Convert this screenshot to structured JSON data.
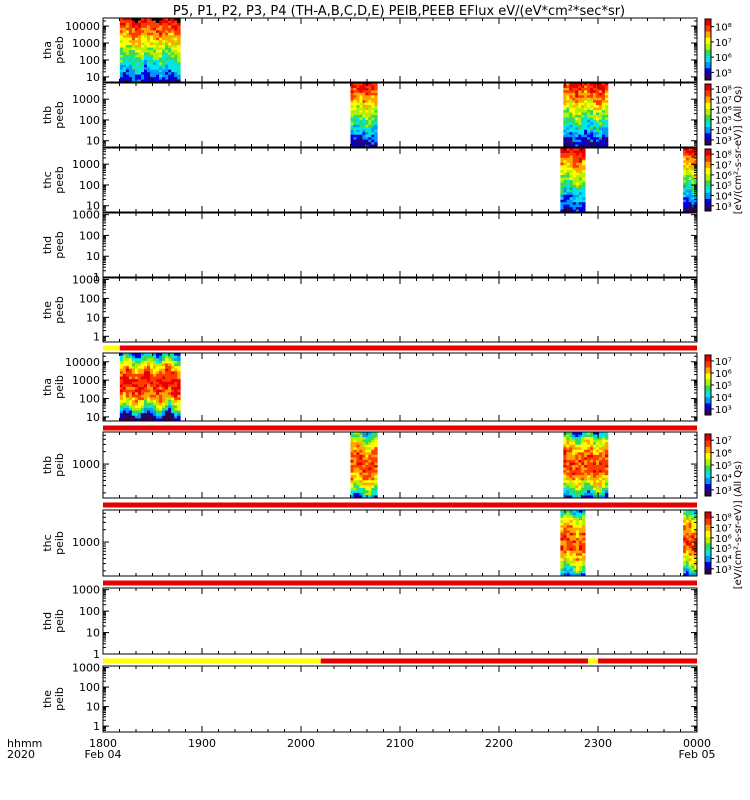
{
  "title": "P5, P1, P2, P3, P4 (TH-A,B,C,D,E) PEIB,PEEB EFlux eV/(eV*cm²*sec*sr)",
  "chart_data": {
    "type": "heatmap",
    "title": "P5, P1, P2, P3, P4 (TH-A,B,C,D,E) PEIB,PEEB EFlux eV/(eV*cm²*sec*sr)",
    "x_axis": {
      "ticks": [
        "1800",
        "1900",
        "2000",
        "2100",
        "2200",
        "2300",
        "0000"
      ],
      "tick_hours": [
        18,
        19,
        20,
        21,
        22,
        23,
        24
      ],
      "range_hours": [
        18,
        24
      ],
      "date_labels": {
        "start": "Feb 04",
        "end": "Feb 05"
      },
      "left_labels": [
        "hhmm",
        "2020"
      ]
    },
    "colorbar_labels": {
      "peeb": "[eV/(cm²-s-sr-eV)] (All Qs)",
      "peib": "[eV/(cm²-s-sr-eV)] (All Qs)"
    },
    "colormap": [
      "#30005a",
      "#0000e6",
      "#0096ff",
      "#00e6e6",
      "#32dc5a",
      "#b4f000",
      "#ffff00",
      "#ffa500",
      "#ff3c00",
      "#e60000"
    ],
    "flag_colors": {
      "red": "#e60000",
      "yellow": "#ffff00"
    },
    "panels": [
      {
        "probe": "tha",
        "instrument": "peeb",
        "ylabels": [
          "tha",
          "peeb"
        ],
        "yscale": "log",
        "ylim": [
          5,
          30000
        ],
        "yticks": [
          10,
          100,
          1000,
          10000
        ],
        "ytick_labels": [
          "10",
          "100",
          "1000",
          "10000"
        ],
        "data_intervals": [
          [
            18.17,
            18.78
          ]
        ],
        "flux_profile": "eeb_low",
        "colorbar": {
          "labels": [
            "10⁵",
            "10⁶",
            "10⁷",
            "10⁸"
          ]
        }
      },
      {
        "probe": "thb",
        "instrument": "peeb",
        "ylabels": [
          "thb",
          "peeb"
        ],
        "yscale": "log",
        "ylim": [
          5,
          6000
        ],
        "yticks": [
          10,
          100,
          1000
        ],
        "ytick_labels": [
          "10",
          "100",
          "1000"
        ],
        "data_intervals": [
          [
            20.5,
            20.77
          ],
          [
            22.65,
            23.1
          ]
        ],
        "flux_profile": "eeb_mid",
        "colorbar": {
          "labels": [
            "10³",
            "10⁴",
            "10⁵",
            "10⁶",
            "10⁷",
            "10⁸"
          ]
        }
      },
      {
        "probe": "thc",
        "instrument": "peeb",
        "ylabels": [
          "thc",
          "peeb"
        ],
        "yscale": "log",
        "ylim": [
          5,
          6000
        ],
        "yticks": [
          10,
          100,
          1000
        ],
        "ytick_labels": [
          "10",
          "100",
          "1000"
        ],
        "data_intervals": [
          [
            22.62,
            22.87
          ],
          [
            23.86,
            24.0
          ]
        ],
        "flux_profile": "eeb_mid",
        "colorbar": {
          "labels": [
            "10³",
            "10⁴",
            "10⁵",
            "10⁶",
            "10⁷",
            "10⁸"
          ]
        }
      },
      {
        "probe": "thd",
        "instrument": "peeb",
        "ylabels": [
          "thd",
          "peeb"
        ],
        "yscale": "log",
        "ylim": [
          1,
          1200
        ],
        "yticks": [
          1,
          10,
          100,
          1000
        ],
        "ytick_labels": [
          "1",
          "10",
          "100",
          "1000"
        ],
        "data_intervals": []
      },
      {
        "probe": "the",
        "instrument": "peeb",
        "ylabels": [
          "the",
          "peeb"
        ],
        "yscale": "log",
        "ylim": [
          0.5,
          1200
        ],
        "yticks": [
          1,
          10,
          100,
          1000
        ],
        "ytick_labels": [
          "1",
          "10",
          "100",
          "1000"
        ],
        "data_intervals": [],
        "flag_bar": [
          {
            "from": 18.0,
            "to": 18.17,
            "color": "yellow"
          },
          {
            "from": 18.17,
            "to": 24.0,
            "color": "red"
          }
        ]
      },
      {
        "probe": "tha",
        "instrument": "peib",
        "ylabels": [
          "tha",
          "peib"
        ],
        "yscale": "log",
        "ylim": [
          6,
          30000
        ],
        "yticks": [
          10,
          100,
          1000,
          10000
        ],
        "ytick_labels": [
          "10",
          "100",
          "1000",
          "10000"
        ],
        "data_intervals": [
          [
            18.17,
            18.78
          ]
        ],
        "flux_profile": "eib_high",
        "colorbar": {
          "labels": [
            "10³",
            "10⁴",
            "10⁵",
            "10⁶",
            "10⁷"
          ]
        },
        "flag_bar": [
          {
            "from": 18.0,
            "to": 24.0,
            "color": "red"
          }
        ]
      },
      {
        "probe": "thb",
        "instrument": "peib",
        "ylabels": [
          "thb",
          "peib"
        ],
        "yscale": "log",
        "ylim": [
          150,
          6000
        ],
        "yticks": [
          1000
        ],
        "ytick_labels": [
          "1000"
        ],
        "data_intervals": [
          [
            20.5,
            20.77
          ],
          [
            22.65,
            23.1
          ]
        ],
        "flux_profile": "eib_mid",
        "colorbar": {
          "labels": [
            "10³",
            "10⁴",
            "10⁵",
            "10⁶",
            "10⁷"
          ]
        },
        "flag_bar": [
          {
            "from": 18.0,
            "to": 24.0,
            "color": "red"
          }
        ]
      },
      {
        "probe": "thc",
        "instrument": "peib",
        "ylabels": [
          "thc",
          "peib"
        ],
        "yscale": "log",
        "ylim": [
          150,
          6000
        ],
        "yticks": [
          1000
        ],
        "ytick_labels": [
          "1000"
        ],
        "data_intervals": [
          [
            22.62,
            22.87
          ],
          [
            23.86,
            24.0
          ]
        ],
        "flux_profile": "eib_mid",
        "colorbar": {
          "labels": [
            "10³",
            "10⁴",
            "10⁵",
            "10⁶",
            "10⁷",
            "10⁸"
          ]
        },
        "flag_bar": [
          {
            "from": 18.0,
            "to": 24.0,
            "color": "red"
          }
        ]
      },
      {
        "probe": "thd",
        "instrument": "peib",
        "ylabels": [
          "thd",
          "peib"
        ],
        "yscale": "log",
        "ylim": [
          1,
          1200
        ],
        "yticks": [
          1,
          10,
          100,
          1000
        ],
        "ytick_labels": [
          "1",
          "10",
          "100",
          "1000"
        ],
        "data_intervals": [],
        "flag_bar": [
          {
            "from": 18.0,
            "to": 20.2,
            "color": "yellow"
          },
          {
            "from": 20.2,
            "to": 22.9,
            "color": "red"
          },
          {
            "from": 22.9,
            "to": 23.0,
            "color": "yellow"
          },
          {
            "from": 23.0,
            "to": 24.0,
            "color": "red"
          }
        ]
      },
      {
        "probe": "the",
        "instrument": "peib",
        "ylabels": [
          "the",
          "peib"
        ],
        "yscale": "log",
        "ylim": [
          0.5,
          1200
        ],
        "yticks": [
          1,
          10,
          100,
          1000
        ],
        "ytick_labels": [
          "1",
          "10",
          "100",
          "1000"
        ],
        "data_intervals": []
      }
    ]
  }
}
